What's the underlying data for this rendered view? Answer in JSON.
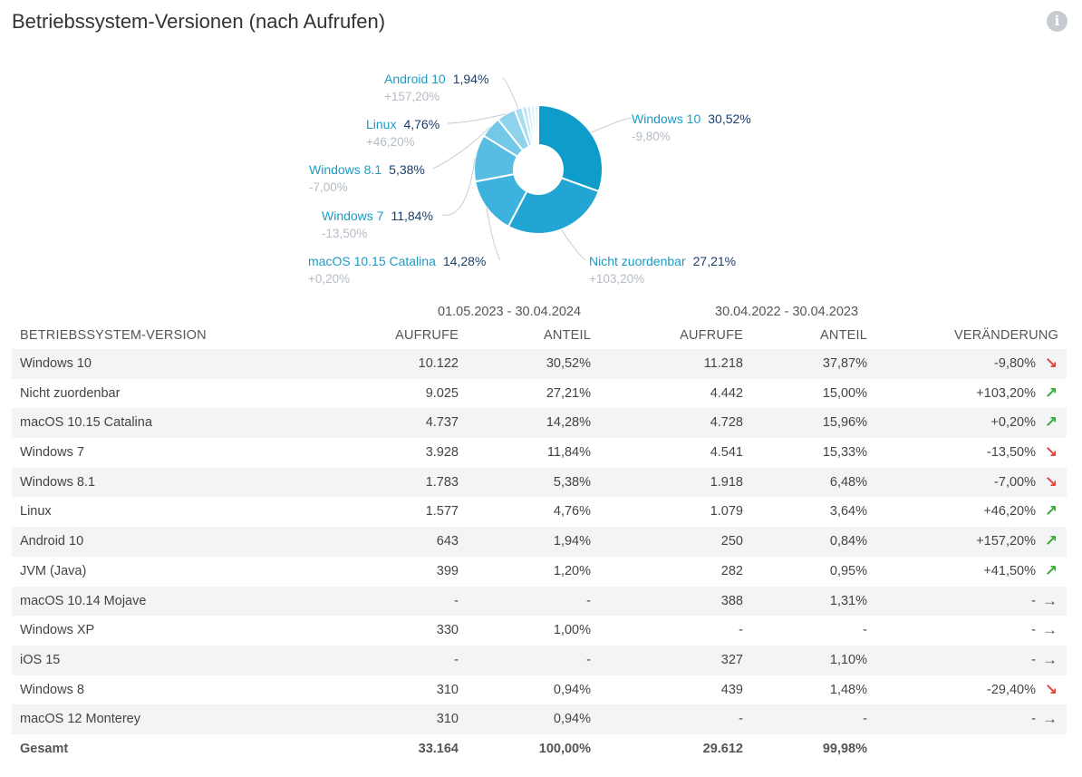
{
  "title": "Betriebssystem-Versionen (nach Aufrufen)",
  "info_icon": "info-icon",
  "chart_data": {
    "type": "pie",
    "variant": "donut",
    "slices": [
      {
        "label": "Windows 10",
        "value": 30.52,
        "change": "-9,80%",
        "pct_label": "30,52%",
        "color": "#0e9ccb"
      },
      {
        "label": "Nicht zuordenbar",
        "value": 27.21,
        "change": "+103,20%",
        "pct_label": "27,21%",
        "color": "#22a5d3"
      },
      {
        "label": "macOS 10.15 Catalina",
        "value": 14.28,
        "change": "+0,20%",
        "pct_label": "14,28%",
        "color": "#3db2dc"
      },
      {
        "label": "Windows 7",
        "value": 11.84,
        "change": "-13,50%",
        "pct_label": "11,84%",
        "color": "#58bde2"
      },
      {
        "label": "Windows 8.1",
        "value": 5.38,
        "change": "-7,00%",
        "pct_label": "5,38%",
        "color": "#74c8e7"
      },
      {
        "label": "Linux",
        "value": 4.76,
        "change": "+46,20%",
        "pct_label": "4,76%",
        "color": "#8fd2ec"
      },
      {
        "label": "Android 10",
        "value": 1.94,
        "change": "+157,20%",
        "pct_label": "1,94%",
        "color": "#a8dcf0"
      },
      {
        "label": "JVM (Java)",
        "value": 1.2,
        "color": "#bde5f4"
      },
      {
        "label": "Windows XP",
        "value": 1.0,
        "color": "#cdebf6"
      },
      {
        "label": "Windows 8",
        "value": 0.94,
        "color": "#d9f0f8"
      },
      {
        "label": "macOS 12 Monterey",
        "value": 0.94,
        "color": "#e3f4fa"
      }
    ]
  },
  "table": {
    "period1": "01.05.2023 - 30.04.2024",
    "period2": "30.04.2022 - 30.04.2023",
    "headers": {
      "name": "BETRIEBSSYSTEM-VERSION",
      "aufrufe1": "AUFRUFE",
      "anteil1": "ANTEIL",
      "aufrufe2": "AUFRUFE",
      "anteil2": "ANTEIL",
      "change": "VERÄNDERUNG"
    },
    "rows": [
      {
        "name": "Windows 10",
        "a1": "10.122",
        "s1": "30,52%",
        "a2": "11.218",
        "s2": "37,87%",
        "chg": "-9,80%",
        "trend": "down"
      },
      {
        "name": "Nicht zuordenbar",
        "a1": "9.025",
        "s1": "27,21%",
        "a2": "4.442",
        "s2": "15,00%",
        "chg": "+103,20%",
        "trend": "up"
      },
      {
        "name": "macOS 10.15 Catalina",
        "a1": "4.737",
        "s1": "14,28%",
        "a2": "4.728",
        "s2": "15,96%",
        "chg": "+0,20%",
        "trend": "up"
      },
      {
        "name": "Windows 7",
        "a1": "3.928",
        "s1": "11,84%",
        "a2": "4.541",
        "s2": "15,33%",
        "chg": "-13,50%",
        "trend": "down"
      },
      {
        "name": "Windows 8.1",
        "a1": "1.783",
        "s1": "5,38%",
        "a2": "1.918",
        "s2": "6,48%",
        "chg": "-7,00%",
        "trend": "down"
      },
      {
        "name": "Linux",
        "a1": "1.577",
        "s1": "4,76%",
        "a2": "1.079",
        "s2": "3,64%",
        "chg": "+46,20%",
        "trend": "up"
      },
      {
        "name": "Android 10",
        "a1": "643",
        "s1": "1,94%",
        "a2": "250",
        "s2": "0,84%",
        "chg": "+157,20%",
        "trend": "up"
      },
      {
        "name": "JVM (Java)",
        "a1": "399",
        "s1": "1,20%",
        "a2": "282",
        "s2": "0,95%",
        "chg": "+41,50%",
        "trend": "up"
      },
      {
        "name": "macOS 10.14 Mojave",
        "a1": "-",
        "s1": "-",
        "a2": "388",
        "s2": "1,31%",
        "chg": "-",
        "trend": "flat"
      },
      {
        "name": "Windows XP",
        "a1": "330",
        "s1": "1,00%",
        "a2": "-",
        "s2": "-",
        "chg": "-",
        "trend": "flat"
      },
      {
        "name": "iOS 15",
        "a1": "-",
        "s1": "-",
        "a2": "327",
        "s2": "1,10%",
        "chg": "-",
        "trend": "flat"
      },
      {
        "name": "Windows 8",
        "a1": "310",
        "s1": "0,94%",
        "a2": "439",
        "s2": "1,48%",
        "chg": "-29,40%",
        "trend": "down"
      },
      {
        "name": "macOS 12 Monterey",
        "a1": "310",
        "s1": "0,94%",
        "a2": "-",
        "s2": "-",
        "chg": "-",
        "trend": "flat"
      }
    ],
    "total": {
      "name": "Gesamt",
      "a1": "33.164",
      "s1": "100,00%",
      "a2": "29.612",
      "s2": "99,98%"
    }
  }
}
